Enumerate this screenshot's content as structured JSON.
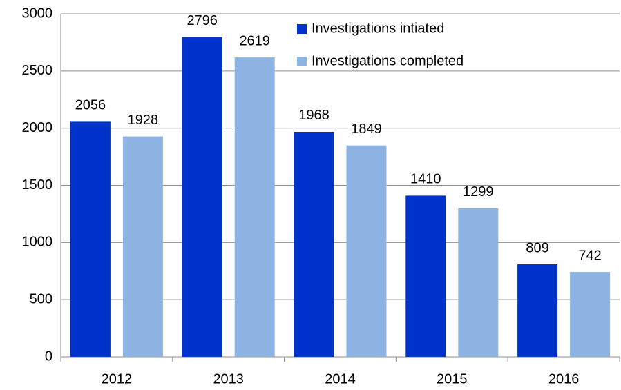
{
  "chart_data": {
    "type": "bar",
    "categories": [
      "2012",
      "2013",
      "2014",
      "2015",
      "2016"
    ],
    "series": [
      {
        "name": "Investigations intiated",
        "color": "#0033cc",
        "values": [
          2056,
          2796,
          1968,
          1410,
          809
        ]
      },
      {
        "name": "Investigations completed",
        "color": "#8db3e2",
        "values": [
          1928,
          2619,
          1849,
          1299,
          742
        ]
      }
    ],
    "ylim": [
      0,
      3000
    ],
    "yticks": [
      0,
      500,
      1000,
      1500,
      2000,
      2500,
      3000
    ],
    "grid": true,
    "legend": "upper right"
  }
}
